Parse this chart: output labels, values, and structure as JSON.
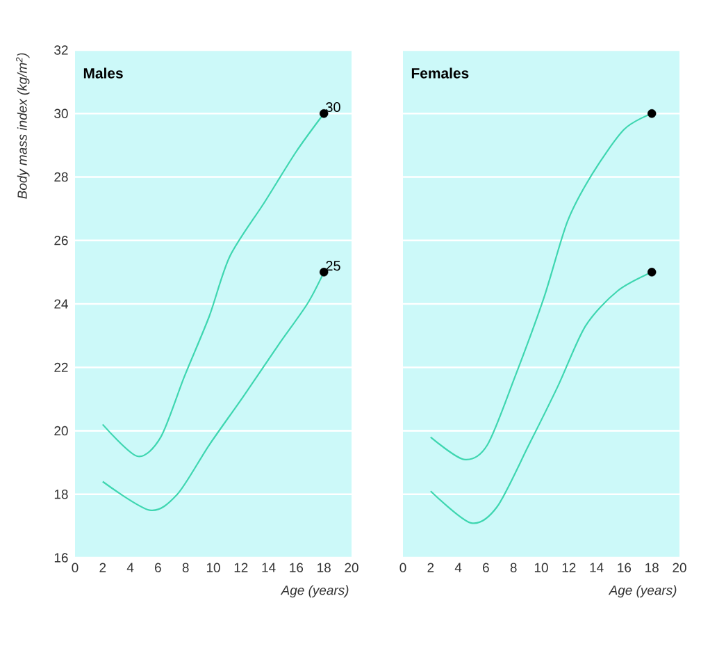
{
  "chart_data": [
    {
      "type": "line",
      "title": "Males",
      "xlabel": "Age (years)",
      "ylabel": "Body mass index (kg/m$^{2}$)",
      "xlim": [
        0,
        20
      ],
      "xticks": [
        0,
        2,
        4,
        6,
        8,
        10,
        12,
        14,
        16,
        18,
        20
      ],
      "ylim": [
        16,
        32
      ],
      "yticks": [
        16,
        18,
        20,
        22,
        24,
        26,
        28,
        30,
        32
      ],
      "grid": "y",
      "marker": "none",
      "series": [
        {
          "color": "#3ed6b0",
          "x": [
            2,
            4.5,
            6.2,
            7.9,
            9.7,
            11.2,
            13.7,
            16,
            18
          ],
          "values": [
            20.2,
            19.2,
            19.8,
            21.7,
            23.6,
            25.5,
            27.2,
            28.8,
            30
          ],
          "value_labels": [
            null,
            null,
            null,
            null,
            null,
            null,
            null,
            null,
            "30"
          ]
        },
        {
          "color": "#3ed6b0",
          "x": [
            2,
            5.4,
            7.4,
            9.7,
            12.2,
            14.7,
            16.8,
            18
          ],
          "values": [
            18.4,
            17.5,
            18.0,
            19.55,
            21.1,
            22.7,
            24.0,
            25
          ],
          "value_labels": [
            null,
            null,
            null,
            null,
            null,
            null,
            null,
            "25"
          ]
        },
        {
          "type": "scatter",
          "marker": "circle",
          "color": "#000000",
          "x": [
            18,
            18
          ],
          "values": [
            30,
            25
          ]
        }
      ]
    },
    {
      "type": "line",
      "title": "Females",
      "xlabel": "Age (years)",
      "xlim": [
        0,
        20
      ],
      "xticks": [
        0,
        2,
        4,
        6,
        8,
        10,
        12,
        14,
        16,
        18,
        20
      ],
      "ylim": [
        16,
        32
      ],
      "yticks": [
        16,
        18,
        20,
        22,
        24,
        26,
        28,
        30,
        32
      ],
      "tick_labels": "x",
      "grid": "y",
      "marker": "none",
      "series": [
        {
          "color": "#3ed6b0",
          "x": [
            2,
            4.4,
            6.1,
            8.1,
            10.2,
            11.9,
            13.7,
            16,
            18
          ],
          "values": [
            19.8,
            19.1,
            19.55,
            21.7,
            24.2,
            26.6,
            28.1,
            29.5,
            30
          ]
        },
        {
          "color": "#3ed6b0",
          "x": [
            2,
            4.9,
            6.8,
            9.1,
            11.2,
            13.2,
            15.5,
            18
          ],
          "values": [
            18.1,
            17.1,
            17.6,
            19.55,
            21.4,
            23.3,
            24.4,
            25
          ]
        },
        {
          "type": "scatter",
          "marker": "circle",
          "color": "#000000",
          "x": [
            18,
            18
          ],
          "values": [
            30,
            25
          ]
        }
      ]
    }
  ]
}
